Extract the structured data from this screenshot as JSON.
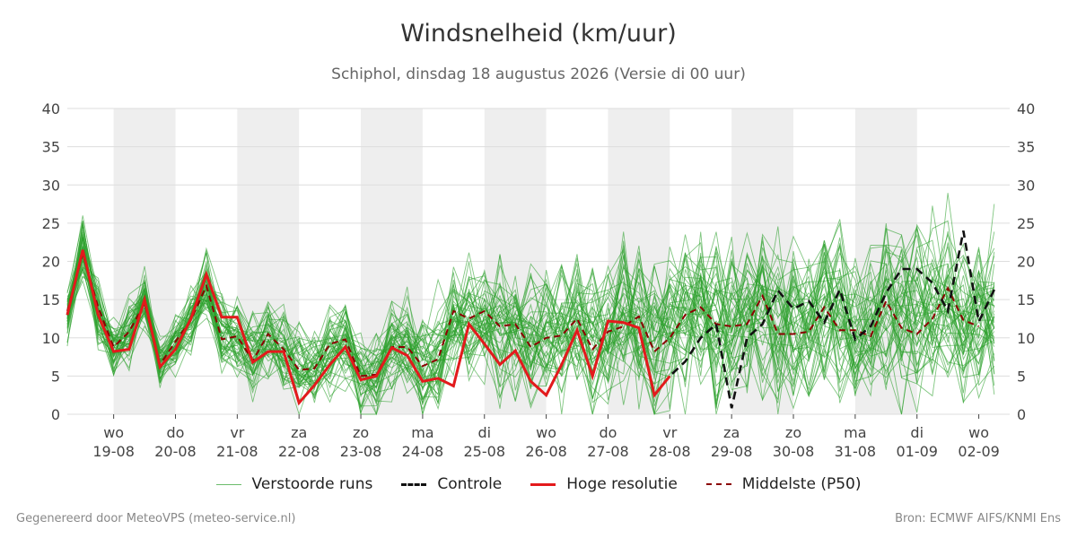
{
  "chart_data": {
    "type": "line",
    "title": "Windsnelheid (km/uur)",
    "subtitle": "Schiphol, dinsdag 18 augustus 2026 (Versie di 00 uur)",
    "ylim": [
      0,
      40
    ],
    "yticks": [
      0,
      5,
      10,
      15,
      20,
      25,
      30,
      35,
      40
    ],
    "xlim": [
      -0.75,
      14.5
    ],
    "x_ticks": [
      {
        "day": "wo",
        "date": "19-08",
        "x": 0
      },
      {
        "day": "do",
        "date": "20-08",
        "x": 1
      },
      {
        "day": "vr",
        "date": "21-08",
        "x": 2
      },
      {
        "day": "za",
        "date": "22-08",
        "x": 3
      },
      {
        "day": "zo",
        "date": "23-08",
        "x": 4
      },
      {
        "day": "ma",
        "date": "24-08",
        "x": 5
      },
      {
        "day": "di",
        "date": "25-08",
        "x": 6
      },
      {
        "day": "wo",
        "date": "26-08",
        "x": 7
      },
      {
        "day": "do",
        "date": "27-08",
        "x": 8
      },
      {
        "day": "vr",
        "date": "28-08",
        "x": 9
      },
      {
        "day": "za",
        "date": "29-08",
        "x": 10
      },
      {
        "day": "zo",
        "date": "30-08",
        "x": 11
      },
      {
        "day": "ma",
        "date": "31-08",
        "x": 12
      },
      {
        "day": "di",
        "date": "01-09",
        "x": 13
      },
      {
        "day": "wo",
        "date": "02-09",
        "x": 14
      }
    ],
    "shaded_days": [
      0,
      2,
      4,
      6,
      8,
      10,
      12
    ],
    "grid": true,
    "legend_position": "bottom",
    "colors": {
      "ensemble": "#2ca02c",
      "controle": "#111111",
      "hoge_resolutie": "#e31a1c",
      "p50": "#8b0000",
      "shade": "#eeeeee",
      "grid": "#dddddd"
    },
    "series": [
      {
        "name": "Controle",
        "step": 0.25,
        "x0": -0.75,
        "values": [
          13,
          21.5,
          13,
          8.2,
          8.5,
          15,
          6.2,
          8.5,
          12.5,
          18.3,
          12.7,
          12.7,
          6.8,
          8.2,
          8.2,
          1.5,
          3.8,
          6.5,
          8.8,
          4.5,
          5,
          8.7,
          7.7,
          4.3,
          4.7,
          3.7,
          11.8,
          9.2,
          6.5,
          8.3,
          4.3,
          2.5,
          6.5,
          11,
          5,
          12.2,
          12,
          11.3,
          2.5,
          5,
          6.9,
          10,
          11.8,
          0.8,
          10,
          11.8,
          16.2,
          13.8,
          14.8,
          12,
          16.3,
          9.8,
          11.5,
          15.9,
          19,
          19,
          17.2,
          13.5,
          24,
          12.1,
          16.3
        ]
      },
      {
        "name": "Hoge resolutie",
        "step": 0.25,
        "x0": -0.75,
        "values": [
          13,
          21.5,
          13,
          8.2,
          8.5,
          15,
          6.2,
          8.5,
          12.5,
          18.3,
          12.7,
          12.7,
          6.8,
          8.2,
          8.2,
          1.5,
          3.8,
          6.5,
          8.8,
          4.5,
          5,
          8.7,
          7.7,
          4.3,
          4.7,
          3.7,
          11.8,
          9.2,
          6.5,
          8.3,
          4.3,
          2.5,
          6.5,
          11,
          5,
          12.2,
          12,
          11.3,
          2.5,
          5
        ]
      },
      {
        "name": "Middelste (P50)",
        "step": 0.25,
        "x0": -0.75,
        "values": [
          13.5,
          21,
          14,
          8.8,
          10.8,
          14.5,
          6.5,
          9.5,
          12.3,
          16.8,
          9.8,
          10.2,
          7,
          10.5,
          8.5,
          5.8,
          6,
          9.2,
          9.8,
          5,
          5.2,
          8.8,
          8.8,
          6.3,
          7.2,
          13.5,
          12.5,
          13.5,
          11.5,
          11.8,
          8.8,
          10,
          10.3,
          12.5,
          8.5,
          10.8,
          11.5,
          12.8,
          8.2,
          10,
          13,
          14,
          11.8,
          11.5,
          11.8,
          15.5,
          10.5,
          10.5,
          10.8,
          14,
          11,
          11,
          10.2,
          14.8,
          11.3,
          10.5,
          12.5,
          16.5,
          12.3,
          11.5
        ]
      },
      {
        "name": "Verstoorde runs",
        "members": 50,
        "step": 0.25,
        "x0": -0.75,
        "mean": [
          13,
          21.5,
          13.5,
          8.8,
          10.5,
          15,
          6.5,
          9.5,
          12.3,
          16.5,
          10.5,
          10.5,
          7.2,
          10,
          8.5,
          5.8,
          6.2,
          9,
          9.5,
          5,
          5.5,
          8.8,
          8.8,
          6.5,
          8,
          12,
          12.5,
          12.5,
          11.5,
          11.5,
          9.5,
          10.5,
          10.8,
          12,
          9,
          11,
          11.5,
          12.5,
          9,
          11,
          12.5,
          13.5,
          12,
          12,
          12.5,
          14.5,
          11.5,
          11.5,
          12,
          13.5,
          12,
          12,
          12,
          14,
          12.5,
          12,
          13,
          15,
          12.5,
          12.5,
          13.5
        ],
        "spread": [
          2.5,
          2.8,
          3,
          2.8,
          3.2,
          3,
          2.5,
          3,
          3.2,
          3.2,
          3.8,
          3.8,
          4,
          4,
          4,
          4,
          4,
          4,
          4.2,
          4.2,
          4.5,
          4.5,
          5,
          5,
          5.5,
          5.5,
          6,
          6,
          6.5,
          6.5,
          6.5,
          7,
          7,
          7,
          7,
          7,
          7.5,
          7.5,
          7.5,
          7.5,
          8,
          8,
          8,
          8,
          8,
          8,
          8,
          8,
          8,
          8,
          8,
          8,
          8,
          8,
          8,
          8,
          8.5,
          8.5,
          8.5,
          8.5,
          8.5
        ]
      }
    ]
  },
  "legend": {
    "ensemble": "Verstoorde runs",
    "controle": "Controle",
    "hoge_resolutie": "Hoge resolutie",
    "p50": "Middelste (P50)"
  },
  "footer": {
    "left": "Gegenereerd door MeteoVPS (meteo-service.nl)",
    "right": "Bron: ECMWF AIFS/KNMI Ens"
  }
}
